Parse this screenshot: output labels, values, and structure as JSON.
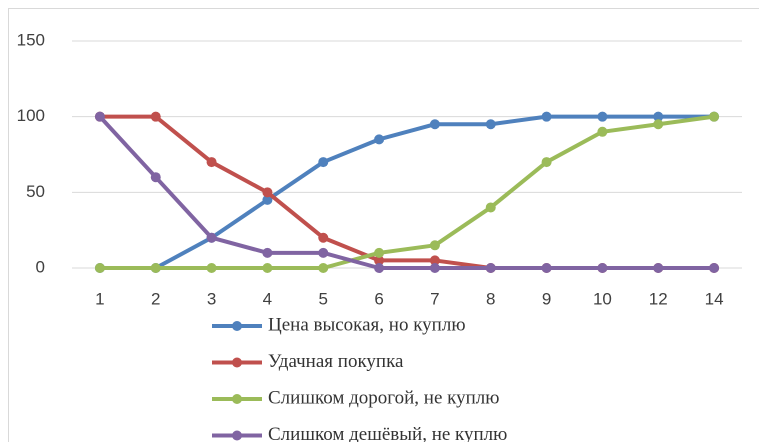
{
  "chart_data": {
    "type": "line",
    "categories": [
      1,
      2,
      3,
      4,
      5,
      6,
      7,
      8,
      9,
      10,
      12,
      14
    ],
    "series": [
      {
        "name": "Цена высокая, но куплю",
        "color": "#4f81bd",
        "values": [
          0,
          0,
          20,
          45,
          70,
          85,
          95,
          95,
          100,
          100,
          100,
          100
        ]
      },
      {
        "name": "Удачная покупка",
        "color": "#c0504d",
        "values": [
          100,
          100,
          70,
          50,
          20,
          5,
          5,
          0,
          0,
          0,
          0,
          0
        ]
      },
      {
        "name": "Слишком дорогой, не куплю",
        "color": "#9bbb59",
        "values": [
          0,
          0,
          0,
          0,
          0,
          10,
          15,
          40,
          70,
          90,
          95,
          100
        ]
      },
      {
        "name": "Слишком дешёвый, не куплю",
        "color": "#8064a2",
        "values": [
          100,
          60,
          20,
          10,
          10,
          0,
          0,
          0,
          0,
          0,
          0,
          0
        ]
      }
    ],
    "ylim": [
      0,
      150
    ],
    "yticks": [
      0,
      50,
      100,
      150
    ],
    "grid": true,
    "legend": "bottom"
  }
}
